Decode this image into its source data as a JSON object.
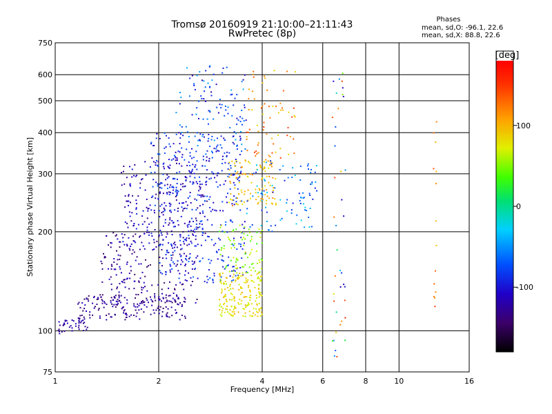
{
  "header": {
    "title": "Tromsø 20160919 21:10:00–21:11:43",
    "subtitle": "RwPretec (8p)"
  },
  "stats": {
    "heading": "Phases",
    "line_o": "mean, sd,O: -96.1, 22.6",
    "line_x": "mean, sd,X: 88.8, 22.6"
  },
  "colorbar": {
    "label": "[deg]",
    "ticks": [
      "100",
      "0",
      "-100"
    ],
    "tick_values": [
      100,
      0,
      -100
    ],
    "range": [
      -180,
      180
    ]
  },
  "chart_data": {
    "type": "scatter",
    "xlabel": "Frequency [MHz]",
    "ylabel": "Stationary phase Virtual Height [km]",
    "xscale": "log",
    "yscale": "log",
    "xlim": [
      1,
      16
    ],
    "ylim": [
      75,
      750
    ],
    "xticks": [
      1,
      2,
      4,
      6,
      8,
      10,
      16
    ],
    "xtick_labels": [
      "1",
      "2",
      "4",
      "6",
      "8",
      "10",
      "16"
    ],
    "yticks": [
      75,
      100,
      200,
      300,
      400,
      500,
      600,
      750
    ],
    "ytick_labels": [
      "75",
      "100",
      "200",
      "300",
      "400",
      "500",
      "600",
      "750"
    ],
    "grid": true,
    "color_by": "phase [deg]",
    "clusters": [
      {
        "x": [
          1.02,
          1.25
        ],
        "y": [
          98,
          108
        ],
        "phase": [
          -140,
          -110
        ],
        "n": 40
      },
      {
        "x": [
          1.15,
          2.4
        ],
        "y": [
          108,
          128
        ],
        "phase": [
          -150,
          -110
        ],
        "n": 160
      },
      {
        "x": [
          1.35,
          2.6
        ],
        "y": [
          120,
          200
        ],
        "phase": [
          -150,
          -100
        ],
        "n": 230
      },
      {
        "x": [
          1.55,
          2.8
        ],
        "y": [
          180,
          330
        ],
        "phase": [
          -140,
          -90
        ],
        "n": 210
      },
      {
        "x": [
          1.9,
          3.5
        ],
        "y": [
          230,
          400
        ],
        "phase": [
          -120,
          -60
        ],
        "n": 260
      },
      {
        "x": [
          2.0,
          3.6
        ],
        "y": [
          140,
          220
        ],
        "phase": [
          -110,
          -60
        ],
        "n": 160
      },
      {
        "x": [
          2.2,
          3.6
        ],
        "y": [
          330,
          640
        ],
        "phase": [
          -120,
          -40
        ],
        "n": 120
      },
      {
        "x": [
          3.0,
          4.0
        ],
        "y": [
          110,
          150
        ],
        "phase": [
          60,
          100
        ],
        "n": 190
      },
      {
        "x": [
          3.0,
          4.0
        ],
        "y": [
          150,
          210
        ],
        "phase": [
          30,
          80
        ],
        "n": 80
      },
      {
        "x": [
          3.2,
          4.4
        ],
        "y": [
          240,
          330
        ],
        "phase": [
          70,
          120
        ],
        "n": 110
      },
      {
        "x": [
          3.6,
          5.0
        ],
        "y": [
          330,
          620
        ],
        "phase": [
          80,
          150
        ],
        "n": 70
      },
      {
        "x": [
          3.6,
          5.8
        ],
        "y": [
          200,
          330
        ],
        "phase": [
          -100,
          -20
        ],
        "n": 90
      },
      {
        "x": [
          6.4,
          7.0
        ],
        "y": [
          82,
          640
        ],
        "phase": [
          -120,
          160
        ],
        "n": 40
      },
      {
        "x": [
          12.6,
          12.9
        ],
        "y": [
          92,
          460
        ],
        "phase": [
          90,
          160
        ],
        "n": 14
      }
    ]
  }
}
